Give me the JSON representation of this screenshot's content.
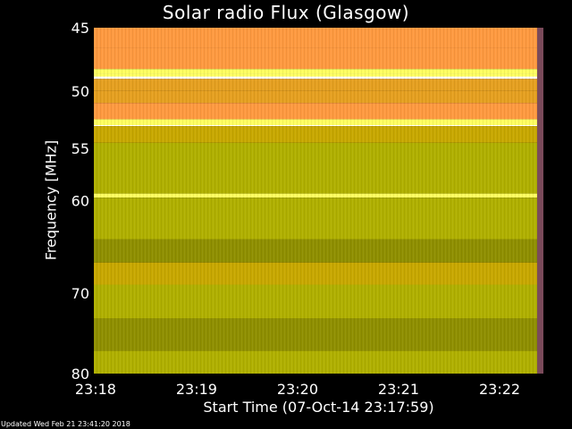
{
  "chart_data": {
    "type": "heatmap",
    "title": "Solar radio Flux (Glasgow)",
    "xlabel": "Start Time (07-Oct-14 23:17:59)",
    "ylabel": "Frequency [MHz]",
    "x_ticks": [
      "23:18",
      "23:19",
      "23:20",
      "23:21",
      "23:22"
    ],
    "y_ticks": [
      45,
      50,
      55,
      60,
      70,
      80
    ],
    "xlim": [
      "23:17:59",
      "23:22:26"
    ],
    "ylim": [
      45,
      80
    ],
    "colormap": [
      "#6b6b00",
      "#8f8f00",
      "#b0b000",
      "#c8a800",
      "#e6a020",
      "#ff9a40",
      "#ffff60",
      "#ffffff"
    ],
    "bright_lines_mhz": [
      48.7,
      52.8,
      59.5
    ],
    "band_rows": [
      {
        "from": 44.5,
        "to": 46.5,
        "level": 5
      },
      {
        "from": 46.5,
        "to": 48.2,
        "level": 5
      },
      {
        "from": 48.2,
        "to": 48.6,
        "level": 6
      },
      {
        "from": 48.6,
        "to": 49.0,
        "level": 7
      },
      {
        "from": 49.0,
        "to": 50.0,
        "level": 4
      },
      {
        "from": 50.0,
        "to": 51.0,
        "level": 4
      },
      {
        "from": 51.0,
        "to": 52.4,
        "level": 5
      },
      {
        "from": 52.4,
        "to": 52.7,
        "level": 6
      },
      {
        "from": 52.7,
        "to": 53.0,
        "level": 7
      },
      {
        "from": 53.0,
        "to": 54.5,
        "level": 3
      },
      {
        "from": 54.5,
        "to": 59.3,
        "level": 2
      },
      {
        "from": 59.3,
        "to": 59.7,
        "level": 6
      },
      {
        "from": 59.7,
        "to": 64.0,
        "level": 2
      },
      {
        "from": 64.0,
        "to": 66.5,
        "level": 1
      },
      {
        "from": 66.5,
        "to": 69.0,
        "level": 3
      },
      {
        "from": 69.0,
        "to": 73.0,
        "level": 2
      },
      {
        "from": 73.0,
        "to": 77.0,
        "level": 1
      },
      {
        "from": 77.0,
        "to": 80.5,
        "level": 2
      }
    ]
  },
  "footer": {
    "updated": "Updated Wed Feb 21 23:41:20 2018"
  }
}
